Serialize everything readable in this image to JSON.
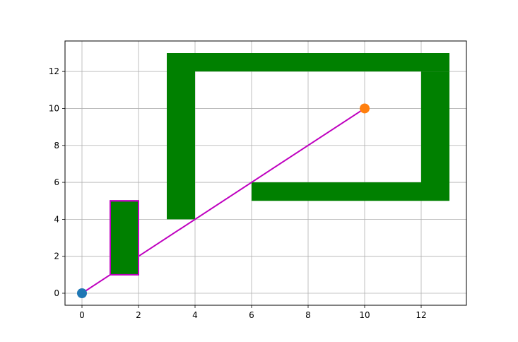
{
  "chart_data": {
    "type": "scatter",
    "title": "",
    "xlabel": "",
    "ylabel": "",
    "xlim": [
      -0.6,
      13.6
    ],
    "ylim": [
      -0.65,
      13.65
    ],
    "grid": true,
    "legend": "none",
    "xticks": [
      0,
      2,
      4,
      6,
      8,
      10,
      12
    ],
    "yticks": [
      0,
      2,
      4,
      6,
      8,
      10,
      12
    ],
    "xtick_labels": [
      "0",
      "2",
      "4",
      "6",
      "8",
      "10",
      "12"
    ],
    "ytick_labels": [
      "0",
      "2",
      "4",
      "6",
      "8",
      "10",
      "12"
    ],
    "obstacles": [
      {
        "x0": 1,
        "y0": 1,
        "x1": 2,
        "y1": 5
      },
      {
        "x0": 3,
        "y0": 4,
        "x1": 4,
        "y1": 13
      },
      {
        "x0": 4,
        "y0": 12,
        "x1": 13,
        "y1": 13
      },
      {
        "x0": 12,
        "y0": 5,
        "x1": 13,
        "y1": 12
      },
      {
        "x0": 6,
        "y0": 5,
        "x1": 12,
        "y1": 6
      }
    ],
    "obstacle_color": "#008000",
    "highlight_outline": {
      "x0": 1,
      "y0": 1,
      "x1": 2,
      "y1": 5,
      "color": "#bf00bf"
    },
    "path": {
      "color": "#bf00bf",
      "points": [
        [
          0,
          0
        ],
        [
          1,
          1
        ],
        [
          1,
          5
        ],
        [
          2,
          5
        ],
        [
          2,
          2
        ],
        [
          10,
          10
        ]
      ]
    },
    "start": {
      "x": 0,
      "y": 0,
      "color": "#1f77b4"
    },
    "goal": {
      "x": 10,
      "y": 10,
      "color": "#ff7f0e"
    }
  }
}
